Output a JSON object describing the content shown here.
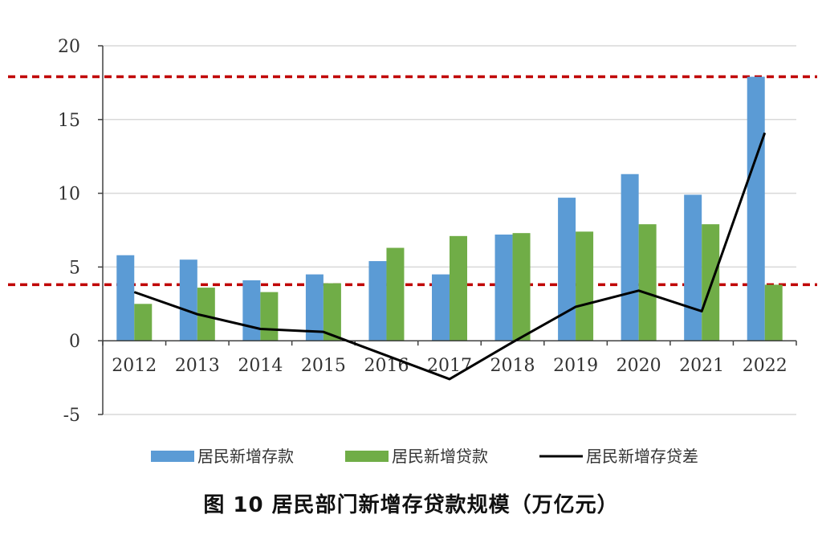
{
  "chart_data": {
    "type": "bar",
    "caption": "图 10 居民部门新增存贷款规模（万亿元）",
    "categories": [
      "2012",
      "2013",
      "2014",
      "2015",
      "2016",
      "2017",
      "2018",
      "2019",
      "2020",
      "2021",
      "2022"
    ],
    "series": [
      {
        "name": "居民新增存款",
        "kind": "bar",
        "color": "#5b9bd5",
        "values": [
          5.8,
          5.5,
          4.1,
          4.5,
          5.4,
          4.5,
          7.2,
          9.7,
          11.3,
          9.9,
          17.9
        ]
      },
      {
        "name": "居民新增贷款",
        "kind": "bar",
        "color": "#70ad47",
        "values": [
          2.5,
          3.6,
          3.3,
          3.9,
          6.3,
          7.1,
          7.3,
          7.4,
          7.9,
          7.9,
          3.8
        ]
      },
      {
        "name": "居民新增存贷差",
        "kind": "line",
        "color": "#000000",
        "values": [
          3.3,
          1.8,
          0.8,
          0.6,
          -1.0,
          -2.6,
          -0.1,
          2.3,
          3.4,
          2.0,
          14.1
        ]
      }
    ],
    "ylim": [
      -5,
      20
    ],
    "yticks": [
      -5,
      0,
      5,
      10,
      15,
      20
    ],
    "reference_lines": [
      {
        "y": 17.9,
        "color": "#c00000",
        "style": "dashed"
      },
      {
        "y": 3.8,
        "color": "#c00000",
        "style": "dashed"
      }
    ],
    "grid": true,
    "legend_position": "bottom"
  }
}
